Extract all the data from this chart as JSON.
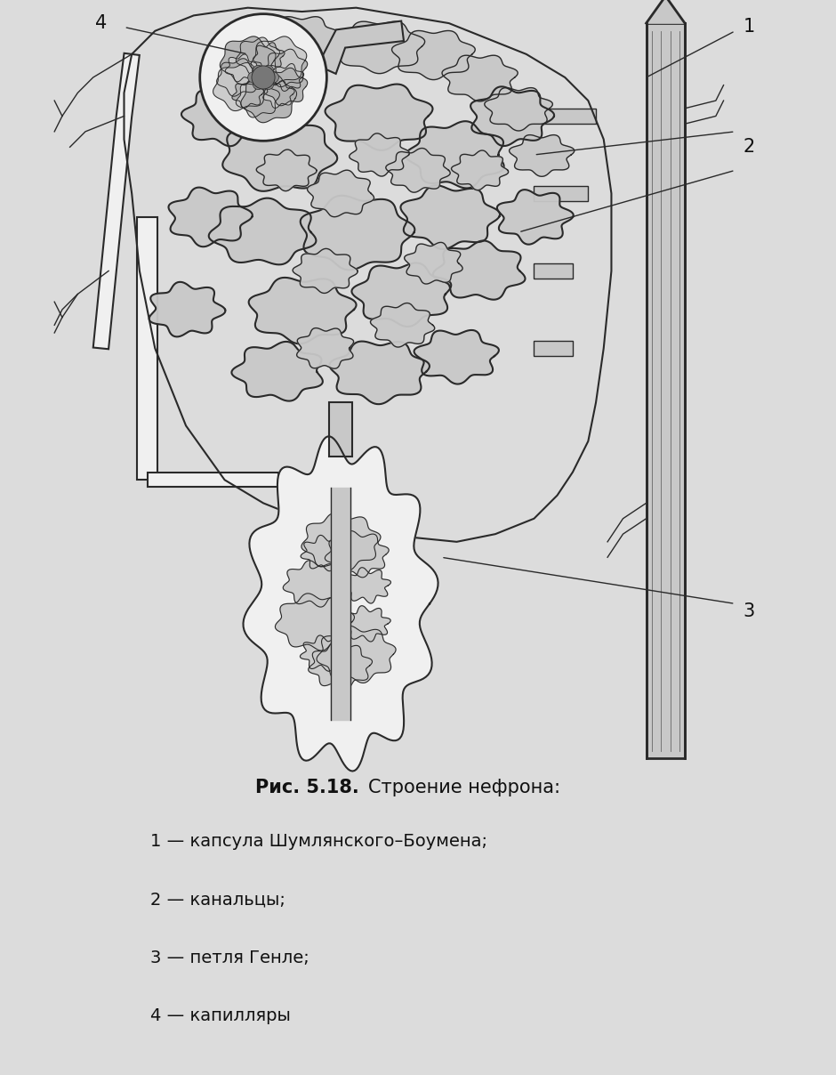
{
  "bg_color": "#dcdcdc",
  "fig_width": 9.4,
  "fig_height": 12.08,
  "dpi": 100,
  "caption_title_bold": "Рис. 5.18.",
  "caption_title_normal": " Строение нефрона:",
  "caption_lines": [
    "1 — капсула Шумлянского–Боумена;",
    "2 — канальцы;",
    "3 — петля Генле;",
    "4 — капилляры"
  ],
  "label_1": "1",
  "label_2": "2",
  "label_3": "3",
  "label_4": "4",
  "line_color": "#2a2a2a",
  "fill_light": "#c8c8c8",
  "fill_dark": "#888888",
  "fill_white": "#f0f0f0"
}
